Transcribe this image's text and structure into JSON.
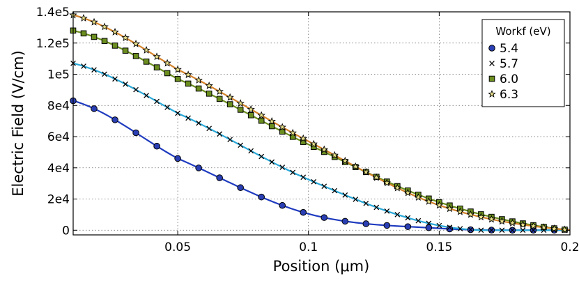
{
  "chart_data": {
    "type": "line",
    "xlabel": "Position (μm)",
    "ylabel": "Electric Field (V/cm)",
    "xlim": [
      0.01,
      0.2
    ],
    "ylim": [
      -3000,
      140000
    ],
    "x_ticks": [
      0.05,
      0.1,
      0.15,
      0.2
    ],
    "x_tick_labels": [
      "0.05",
      "0.1",
      "0.15",
      "0.2"
    ],
    "y_ticks": [
      0,
      20000,
      40000,
      60000,
      80000,
      100000,
      120000,
      140000
    ],
    "y_tick_labels": [
      "0",
      "2e4",
      "4e4",
      "6e4",
      "8e4",
      "1e5",
      "1.2e5",
      "1.4e5"
    ],
    "grid": true,
    "legend": {
      "title": "Workf (eV)",
      "placement": "top-right"
    },
    "series": [
      {
        "name": "5.4",
        "marker": "circle",
        "marker_color": "#2a3fb4",
        "line_color": "#1f3bbf",
        "marker_step": 0.008,
        "points": [
          [
            0.01,
            83000
          ],
          [
            0.05,
            46000
          ],
          [
            0.1,
            10500
          ],
          [
            0.15,
            1200
          ],
          [
            0.2,
            0
          ]
        ]
      },
      {
        "name": "5.7",
        "marker": "x",
        "marker_color": "#000000",
        "line_color": "#29a8d8",
        "marker_step": 0.004,
        "points": [
          [
            0.01,
            107000
          ],
          [
            0.05,
            75000
          ],
          [
            0.1,
            32500
          ],
          [
            0.15,
            3000
          ],
          [
            0.2,
            0
          ]
        ]
      },
      {
        "name": "6.0",
        "marker": "square",
        "marker_color": "#6b8e1f",
        "line_color": "#6b8e1f",
        "marker_step": 0.004,
        "points": [
          [
            0.01,
            128000
          ],
          [
            0.05,
            97000
          ],
          [
            0.1,
            55000
          ],
          [
            0.15,
            18000
          ],
          [
            0.2,
            0
          ]
        ]
      },
      {
        "name": "6.3",
        "marker": "star",
        "marker_color": "#e8e08a",
        "line_color": "#d4822a",
        "marker_step": 0.004,
        "points": [
          [
            0.01,
            138000
          ],
          [
            0.05,
            103000
          ],
          [
            0.1,
            57000
          ],
          [
            0.15,
            16000
          ],
          [
            0.2,
            0
          ]
        ]
      }
    ]
  }
}
